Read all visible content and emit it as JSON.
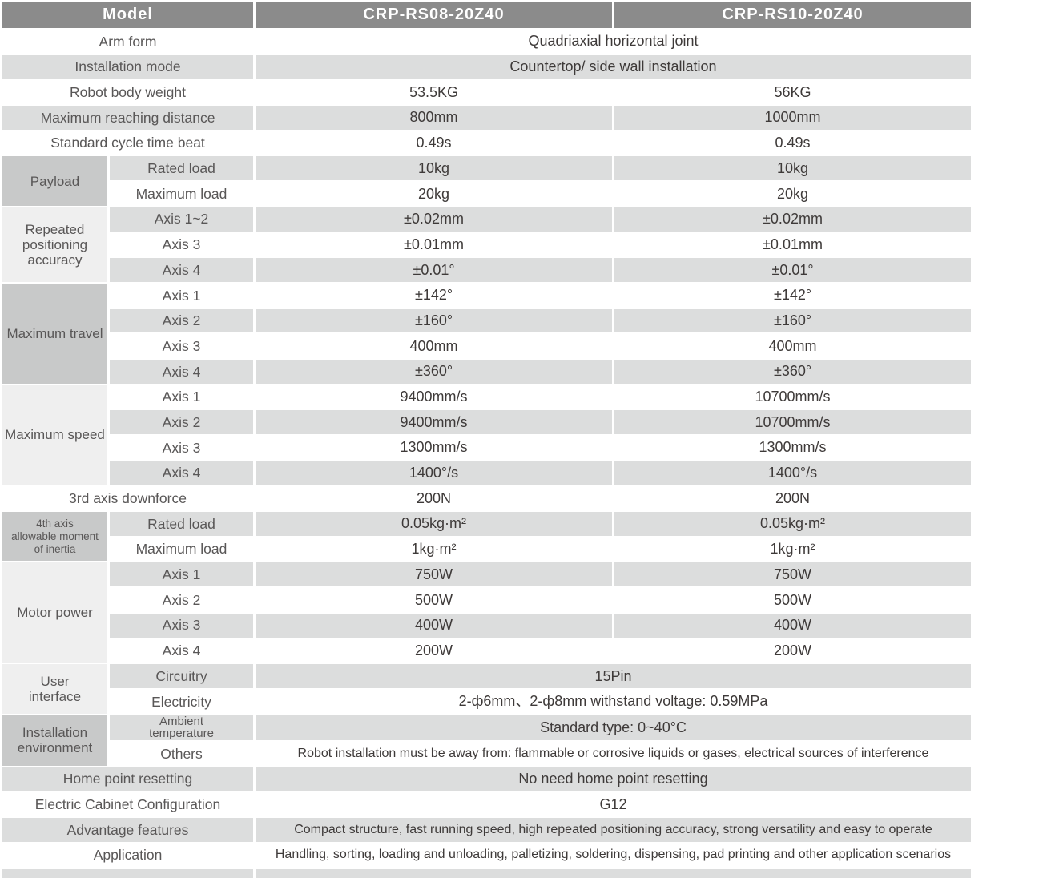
{
  "table": {
    "header": {
      "model_label": "Model",
      "col1": "CRP-RS08-20Z40",
      "col2": "CRP-RS10-20Z40"
    },
    "colors": {
      "header_bg": "#8b8b8b",
      "header_text": "#ffffff",
      "row_stripe": "#dcdddd",
      "group_cell_medium": "#c8c9c9",
      "group_cell_light": "#efefef",
      "label_text": "#595757",
      "value_text": "#3e3a39",
      "background": "#ffffff"
    },
    "rows": [
      {
        "label": "Arm form",
        "merged": "Quadriaxial horizontal joint"
      },
      {
        "label": "Installation mode",
        "merged": "Countertop/ side wall installation"
      },
      {
        "label": "Robot body weight",
        "v1": "53.5KG",
        "v2": "56KG"
      },
      {
        "label": "Maximum reaching distance",
        "v1": "800mm",
        "v2": "1000mm"
      },
      {
        "label": "Standard cycle time beat",
        "v1": "0.49s",
        "v2": "0.49s"
      },
      {
        "group": "Payload",
        "span": 2,
        "shade": "medium",
        "sub": "Rated load",
        "v1": "10kg",
        "v2": "10kg"
      },
      {
        "sub": "Maximum load",
        "v1": "20kg",
        "v2": "20kg"
      },
      {
        "group": "Repeated\npositioning\naccuracy",
        "span": 3,
        "shade": "light",
        "sub": "Axis 1~2",
        "v1": "±0.02mm",
        "v2": "±0.02mm"
      },
      {
        "sub": "Axis 3",
        "v1": "±0.01mm",
        "v2": "±0.01mm"
      },
      {
        "sub": "Axis 4",
        "v1": "±0.01°",
        "v2": "±0.01°"
      },
      {
        "group": "Maximum travel",
        "span": 4,
        "shade": "medium",
        "sub": "Axis 1",
        "v1": "±142°",
        "v2": "±142°"
      },
      {
        "sub": "Axis 2",
        "v1": "±160°",
        "v2": "±160°"
      },
      {
        "sub": "Axis 3",
        "v1": "400mm",
        "v2": "400mm"
      },
      {
        "sub": "Axis 4",
        "v1": "±360°",
        "v2": "±360°"
      },
      {
        "group": "Maximum speed",
        "span": 4,
        "shade": "light",
        "sub": "Axis 1",
        "v1": "9400mm/s",
        "v2": "10700mm/s"
      },
      {
        "sub": "Axis 2",
        "v1": "9400mm/s",
        "v2": "10700mm/s"
      },
      {
        "sub": "Axis 3",
        "v1": "1300mm/s",
        "v2": "1300mm/s"
      },
      {
        "sub": "Axis 4",
        "v1": "1400°/s",
        "v2": "1400°/s"
      },
      {
        "label": "3rd axis downforce",
        "v1": "200N",
        "v2": "200N"
      },
      {
        "group": "4th axis\nallowable moment\nof inertia",
        "span": 2,
        "shade": "medium",
        "groupSmall": true,
        "sub": "Rated load",
        "v1": "0.05kg·m²",
        "v2": "0.05kg·m²"
      },
      {
        "sub": "Maximum load",
        "v1": "1kg·m²",
        "v2": "1kg·m²"
      },
      {
        "group": "Motor power",
        "span": 4,
        "shade": "light",
        "sub": "Axis 1",
        "v1": "750W",
        "v2": "750W"
      },
      {
        "sub": "Axis 2",
        "v1": "500W",
        "v2": "500W"
      },
      {
        "sub": "Axis 3",
        "v1": "400W",
        "v2": "400W"
      },
      {
        "sub": "Axis 4",
        "v1": "200W",
        "v2": "200W"
      },
      {
        "group": "User\ninterface",
        "span": 2,
        "shade": "light",
        "sub": "Circuitry",
        "merged": "15Pin"
      },
      {
        "sub": "Electricity",
        "merged": "2-ф6mm、2-ф8mm withstand voltage: 0.59MPa"
      },
      {
        "group": "Installation\nenvironment",
        "span": 2,
        "shade": "medium",
        "sub": "Ambient\ntemperature",
        "subSmall": true,
        "merged": "Standard type:  0~40°C"
      },
      {
        "sub": "Others",
        "valueSmall": true,
        "merged": "Robot installation must be away from: flammable or corrosive liquids or gases, electrical sources of interference"
      },
      {
        "label": "Home point resetting",
        "merged": "No need home point resetting"
      },
      {
        "label": "Electric Cabinet Configuration",
        "merged": "G12"
      },
      {
        "label": "Advantage features",
        "valueSmall": true,
        "merged": "Compact structure, fast running speed, high repeated positioning accuracy, strong versatility and easy to operate"
      },
      {
        "label": "Application",
        "valueSmall": true,
        "merged": "Handling, sorting, loading and unloading, palletizing, soldering, dispensing, pad printing and other application scenarios"
      },
      {
        "label": "",
        "merged": ""
      }
    ]
  }
}
